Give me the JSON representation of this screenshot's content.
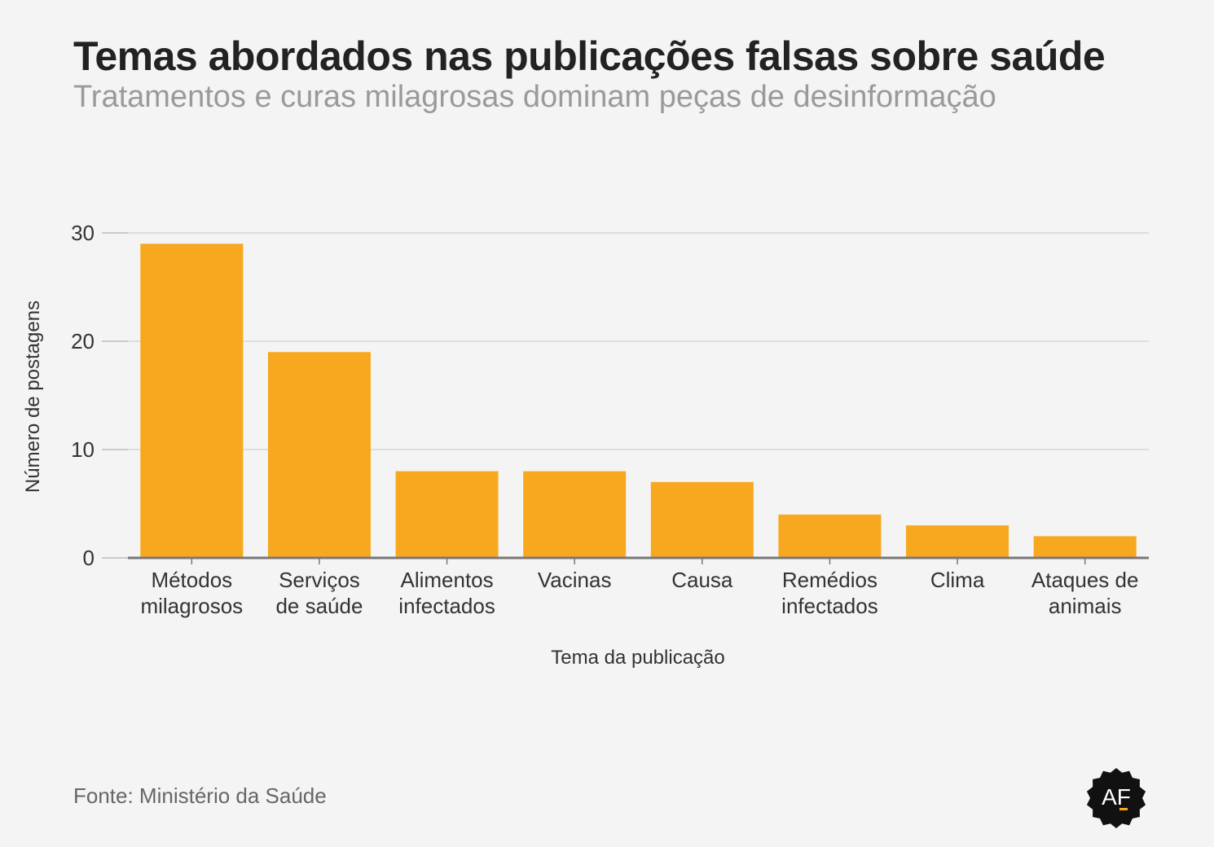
{
  "header": {
    "title": "Temas abordados nas publicações falsas sobre saúde",
    "subtitle": "Tratamentos e curas milagrosas dominam peças de desinformação"
  },
  "footer": {
    "source": "Fonte: Ministério da Saúde",
    "logo_text": "AF"
  },
  "colors": {
    "bar": "#f7a81e",
    "grid": "#dddddd",
    "axis": "#777777",
    "logo_bg": "#111111",
    "logo_accent": "#f7a81e"
  },
  "chart_data": {
    "type": "bar",
    "categories": [
      [
        "Métodos",
        "milagrosos"
      ],
      [
        "Serviços",
        "de saúde"
      ],
      [
        "Alimentos",
        "infectados"
      ],
      [
        "Vacinas"
      ],
      [
        "Causa"
      ],
      [
        "Remédios",
        "infectados"
      ],
      [
        "Clima"
      ],
      [
        "Ataques de",
        "animais"
      ]
    ],
    "values": [
      29,
      19,
      8,
      8,
      7,
      4,
      3,
      2
    ],
    "xlabel": "Tema da publicação",
    "ylabel": "Número de postagens",
    "ylim": [
      0,
      30
    ],
    "yticks": [
      0,
      10,
      20,
      30
    ],
    "grid": true,
    "legend": "none"
  }
}
